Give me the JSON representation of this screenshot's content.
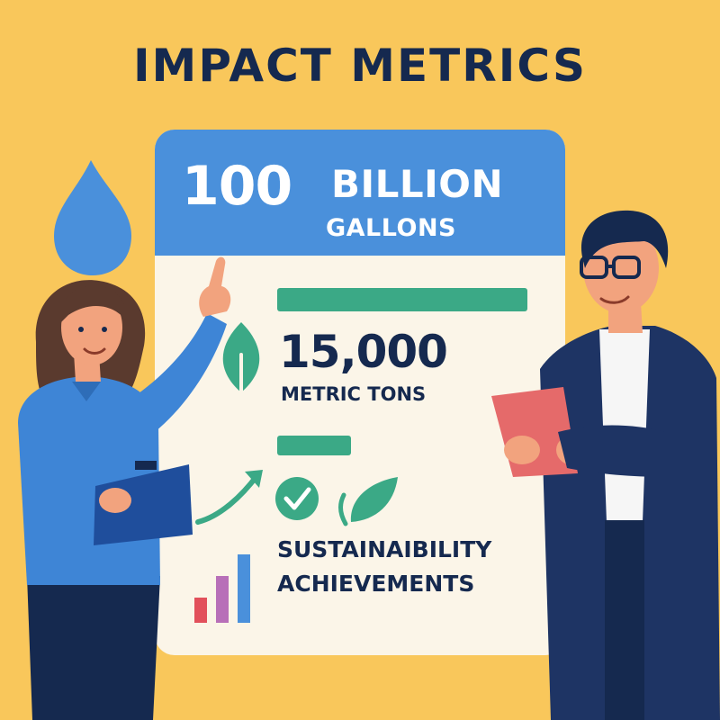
{
  "title": "IMPACT METRICS",
  "water": {
    "number": "100",
    "word": "BILLION",
    "unit": "GALLONS"
  },
  "carbon": {
    "number": "15,000",
    "unit": "METRIC TONS"
  },
  "achievements": {
    "line1": "SUSTAINAIBILITY",
    "line2": "ACHIEVEMENTS"
  },
  "icons": [
    "water-drop-icon",
    "leaf-icon",
    "trend-arrow-icon",
    "checkmark-icon",
    "sprout-icon",
    "bar-chart-icon",
    "clipboard-icon",
    "tablet-icon"
  ],
  "colors": {
    "background": "#F9C75B",
    "header_blue": "#4A90DB",
    "green": "#3BA986",
    "navy": "#15294F",
    "board": "#FBF5E8"
  }
}
